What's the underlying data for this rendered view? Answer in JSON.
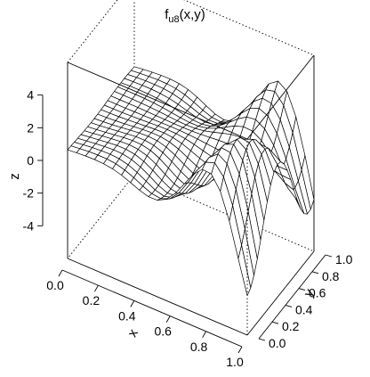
{
  "chart_data": {
    "type": "surface3d",
    "title_main": "f",
    "title_sub": "u8",
    "title_rest": "(x,y)",
    "xlabel": "x",
    "ylabel": "y",
    "zlabel": "z",
    "xlim": [
      0,
      1
    ],
    "ylim": [
      0,
      1
    ],
    "zlim": [
      -6,
      6
    ],
    "x_ticks": [
      "0.0",
      "0.2",
      "0.4",
      "0.6",
      "0.8",
      "1.0"
    ],
    "y_ticks": [
      "0.0",
      "0.2",
      "0.4",
      "0.6",
      "0.8",
      "1.0"
    ],
    "z_ticks": [
      "4",
      "2",
      "0",
      "-2",
      "-4"
    ],
    "z_tick_values": [
      4,
      2,
      0,
      -2,
      -4
    ],
    "grid_resolution": 21,
    "surface_color": "#ffffff",
    "line_color": "#000000"
  }
}
